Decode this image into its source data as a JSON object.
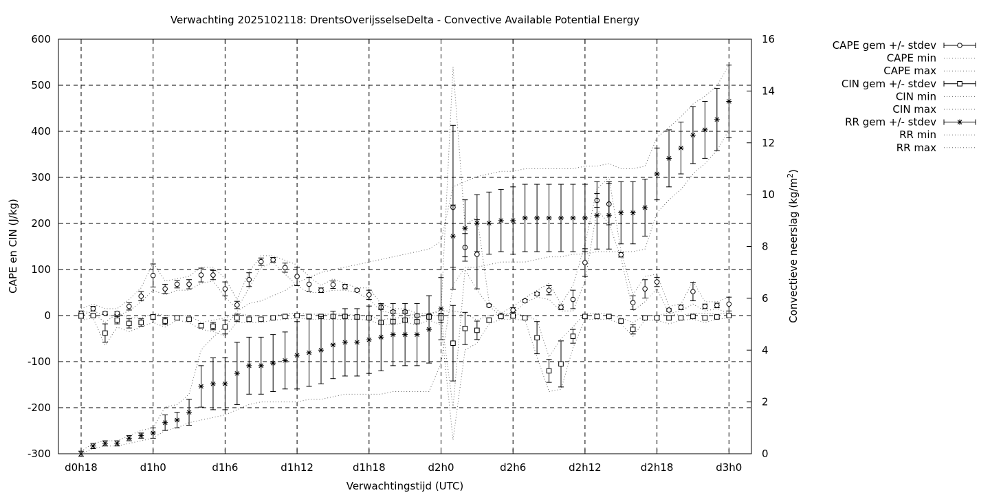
{
  "chart_data": {
    "type": "line",
    "title": "Verwachting 2025102118: DrentsOverijsselseDelta - Convective Available Potential Energy",
    "xlabel": "Verwachtingstijd (UTC)",
    "ylabel": "CAPE en CIN (J/kg)",
    "y2label_main": "Convectieve neerslag (kg/m",
    "y2label_sup": "2",
    "y2label_end": ")",
    "xlim": [
      0,
      57
    ],
    "ylim": [
      -300,
      600
    ],
    "y2lim": [
      0,
      16
    ],
    "x_ticks": [
      {
        "x": 0,
        "label": "d0h18"
      },
      {
        "x": 6,
        "label": "d1h0"
      },
      {
        "x": 12,
        "label": "d1h6"
      },
      {
        "x": 18,
        "label": "d1h12"
      },
      {
        "x": 24,
        "label": "d1h18"
      },
      {
        "x": 30,
        "label": "d2h0"
      },
      {
        "x": 36,
        "label": "d2h6"
      },
      {
        "x": 42,
        "label": "d2h12"
      },
      {
        "x": 48,
        "label": "d2h18"
      },
      {
        "x": 54,
        "label": "d3h0"
      }
    ],
    "y_ticks": [
      "-300",
      "-200",
      "-100",
      "0",
      "100",
      "200",
      "300",
      "400",
      "500",
      "600"
    ],
    "y2_ticks": [
      "0",
      "2",
      "4",
      "6",
      "8",
      "10",
      "12",
      "14",
      "16"
    ],
    "grid": true,
    "legend_position": "outside-top-right",
    "x": [
      0,
      1,
      2,
      3,
      4,
      5,
      6,
      7,
      8,
      9,
      10,
      11,
      12,
      13,
      14,
      15,
      16,
      17,
      18,
      19,
      20,
      21,
      22,
      23,
      24,
      25,
      26,
      27,
      28,
      29,
      30,
      31,
      32,
      33,
      34,
      35,
      36,
      37,
      38,
      39,
      40,
      41,
      42,
      43,
      44,
      45,
      46,
      47,
      48,
      49,
      50,
      51,
      52,
      53,
      54
    ],
    "series": [
      {
        "name": "CAPE gem +/- stdev",
        "axis": "y1",
        "marker": "circle",
        "mean": [
          5,
          15,
          5,
          5,
          20,
          42,
          87,
          58,
          68,
          68,
          88,
          88,
          58,
          23,
          78,
          117,
          121,
          104,
          85,
          68,
          55,
          67,
          63,
          55,
          45,
          18,
          8,
          8,
          0,
          0,
          0,
          235,
          148,
          133,
          22,
          0,
          12,
          32,
          47,
          55,
          18,
          35,
          115,
          250,
          242,
          132,
          28,
          58,
          73,
          12,
          18,
          52,
          20,
          22,
          25
        ],
        "stdev": [
          5,
          5,
          3,
          3,
          8,
          10,
          25,
          10,
          8,
          10,
          15,
          10,
          15,
          8,
          15,
          8,
          5,
          10,
          20,
          15,
          5,
          8,
          5,
          3,
          10,
          5,
          3,
          3,
          3,
          3,
          3,
          178,
          30,
          75,
          3,
          3,
          5,
          3,
          3,
          10,
          5,
          20,
          30,
          15,
          45,
          5,
          15,
          20,
          10,
          3,
          5,
          20,
          5,
          5,
          15
        ]
      },
      {
        "name": "CAPE min",
        "axis": "y1",
        "values": [
          0,
          10,
          0,
          0,
          10,
          30,
          55,
          45,
          55,
          55,
          70,
          75,
          40,
          15,
          60,
          105,
          115,
          90,
          65,
          50,
          50,
          55,
          55,
          50,
          35,
          10,
          5,
          5,
          0,
          0,
          0,
          -200,
          100,
          55,
          20,
          0,
          5,
          28,
          40,
          35,
          10,
          10,
          75,
          230,
          200,
          125,
          10,
          30,
          58,
          5,
          10,
          25,
          10,
          15,
          5
        ]
      },
      {
        "name": "CAPE max",
        "axis": "y1",
        "values": [
          15,
          25,
          15,
          15,
          35,
          60,
          115,
          75,
          80,
          85,
          105,
          105,
          80,
          35,
          95,
          130,
          130,
          120,
          110,
          85,
          65,
          80,
          70,
          60,
          60,
          25,
          15,
          15,
          5,
          5,
          10,
          540,
          195,
          215,
          30,
          5,
          20,
          38,
          55,
          70,
          25,
          65,
          155,
          275,
          300,
          140,
          45,
          85,
          90,
          20,
          25,
          75,
          30,
          30,
          40
        ]
      },
      {
        "name": "CIN gem +/- stdev",
        "axis": "y1",
        "marker": "square",
        "mean": [
          -1,
          0,
          -38,
          -10,
          -17,
          -15,
          -3,
          -12,
          -5,
          -8,
          -22,
          -23,
          -25,
          -5,
          -8,
          -8,
          -5,
          -2,
          0,
          -2,
          -2,
          -2,
          -2,
          -3,
          -5,
          -15,
          -13,
          -10,
          -13,
          -3,
          -5,
          -60,
          -28,
          -32,
          -10,
          -2,
          -1,
          -5,
          -48,
          -120,
          -105,
          -45,
          -2,
          -2,
          -2,
          -12,
          -30,
          -5,
          -5,
          -5,
          -5,
          -2,
          -5,
          -3,
          0
        ],
        "stdev": [
          5,
          3,
          20,
          8,
          10,
          8,
          5,
          8,
          3,
          3,
          5,
          8,
          15,
          8,
          5,
          3,
          3,
          3,
          3,
          3,
          3,
          3,
          3,
          3,
          3,
          3,
          5,
          3,
          3,
          3,
          10,
          82,
          35,
          20,
          5,
          3,
          3,
          3,
          35,
          25,
          50,
          15,
          3,
          3,
          3,
          3,
          10,
          3,
          3,
          5,
          3,
          3,
          5,
          3,
          3
        ]
      },
      {
        "name": "CIN min",
        "axis": "y1",
        "values": [
          -10,
          -5,
          -65,
          -25,
          -35,
          -25,
          -15,
          -25,
          -10,
          -15,
          -30,
          -35,
          -45,
          -15,
          -15,
          -15,
          -10,
          -8,
          -5,
          -8,
          -8,
          -8,
          -8,
          -8,
          -10,
          -20,
          -20,
          -15,
          -20,
          -10,
          -20,
          -270,
          -75,
          -60,
          -18,
          -8,
          -8,
          -10,
          -90,
          -165,
          -160,
          -70,
          -8,
          -8,
          -8,
          -18,
          -45,
          -10,
          -10,
          -18,
          -10,
          -8,
          -15,
          -8,
          -5
        ]
      },
      {
        "name": "CIN max",
        "axis": "y1",
        "values": [
          10,
          5,
          -15,
          5,
          -5,
          -5,
          5,
          0,
          0,
          0,
          -15,
          -10,
          -5,
          5,
          0,
          0,
          0,
          3,
          5,
          3,
          3,
          3,
          3,
          0,
          0,
          -10,
          -5,
          -5,
          -5,
          3,
          10,
          10,
          5,
          -10,
          0,
          3,
          5,
          0,
          -10,
          -90,
          -50,
          -25,
          5,
          5,
          3,
          -5,
          -15,
          0,
          0,
          5,
          0,
          5,
          5,
          3,
          5
        ]
      },
      {
        "name": "RR gem +/- stdev",
        "axis": "y2",
        "marker": "star",
        "mean": [
          0.0,
          0.3,
          0.4,
          0.4,
          0.6,
          0.7,
          0.8,
          1.2,
          1.3,
          1.6,
          2.6,
          2.7,
          2.7,
          3.1,
          3.4,
          3.4,
          3.5,
          3.6,
          3.8,
          3.9,
          4.0,
          4.2,
          4.3,
          4.3,
          4.4,
          4.5,
          4.6,
          4.6,
          4.6,
          4.8,
          5.6,
          8.4,
          8.7,
          8.9,
          8.9,
          9.0,
          9.0,
          9.1,
          9.1,
          9.1,
          9.1,
          9.1,
          9.1,
          9.2,
          9.2,
          9.3,
          9.3,
          9.5,
          10.8,
          11.4,
          11.8,
          12.3,
          12.5,
          12.9,
          13.6
        ],
        "stdev": [
          0.1,
          0.1,
          0.1,
          0.1,
          0.1,
          0.1,
          0.2,
          0.3,
          0.3,
          0.5,
          0.8,
          1.0,
          1.0,
          1.2,
          1.1,
          1.1,
          1.1,
          1.1,
          1.3,
          1.3,
          1.3,
          1.3,
          1.3,
          1.3,
          1.3,
          1.3,
          1.2,
          1.2,
          1.2,
          1.3,
          1.2,
          1.2,
          1.1,
          1.1,
          1.2,
          1.2,
          1.3,
          1.3,
          1.3,
          1.3,
          1.3,
          1.3,
          1.3,
          1.3,
          1.3,
          1.2,
          1.2,
          1.1,
          1.0,
          1.1,
          1.0,
          1.1,
          1.1,
          1.2,
          1.4
        ]
      },
      {
        "name": "RR min",
        "axis": "y2",
        "values": [
          0.0,
          0.2,
          0.3,
          0.3,
          0.4,
          0.5,
          0.6,
          0.9,
          1.0,
          1.2,
          1.3,
          1.4,
          1.5,
          1.7,
          1.9,
          2.0,
          2.0,
          2.0,
          2.0,
          2.1,
          2.1,
          2.2,
          2.3,
          2.3,
          2.3,
          2.3,
          2.4,
          2.4,
          2.4,
          2.4,
          3.5,
          6.5,
          7.2,
          7.2,
          7.3,
          7.4,
          7.4,
          7.4,
          7.5,
          7.6,
          7.6,
          7.7,
          7.7,
          7.8,
          7.8,
          7.8,
          7.8,
          7.9,
          9.3,
          9.8,
          10.2,
          10.8,
          11.2,
          11.7,
          12.5
        ]
      },
      {
        "name": "RR max",
        "axis": "y2",
        "values": [
          0.1,
          0.4,
          0.5,
          0.5,
          0.7,
          0.9,
          1.0,
          1.8,
          1.9,
          2.3,
          4.0,
          4.5,
          4.9,
          5.5,
          5.8,
          5.9,
          6.1,
          6.3,
          6.6,
          6.8,
          7.0,
          7.1,
          7.2,
          7.3,
          7.4,
          7.5,
          7.6,
          7.7,
          7.8,
          7.9,
          8.2,
          10.3,
          10.5,
          10.7,
          10.8,
          10.9,
          10.9,
          11.0,
          11.0,
          11.0,
          11.0,
          11.0,
          11.1,
          11.1,
          11.2,
          11.0,
          11.0,
          11.1,
          12.2,
          12.6,
          13.0,
          13.5,
          13.8,
          14.2,
          15.0
        ]
      }
    ]
  }
}
